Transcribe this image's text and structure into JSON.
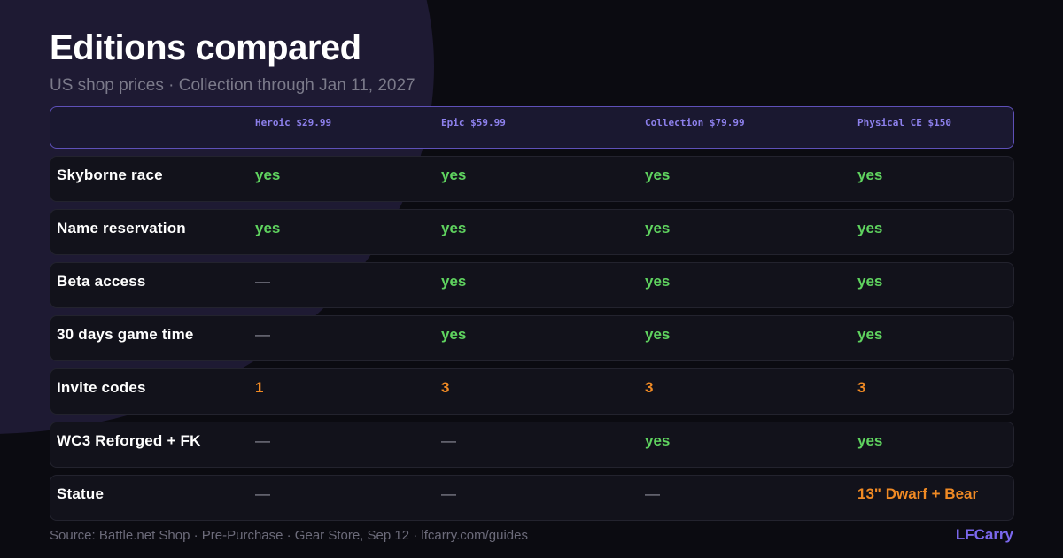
{
  "title": "Editions compared",
  "subtitle": "US shop prices · Collection through Jan 11, 2027",
  "columns": [
    "Heroic $29.99",
    "Epic $59.99",
    "Collection $79.99",
    "Physical CE $150"
  ],
  "rows": [
    {
      "label": "Skyborne race",
      "values": [
        "yes",
        "yes",
        "yes",
        "yes"
      ]
    },
    {
      "label": "Name reservation",
      "values": [
        "yes",
        "yes",
        "yes",
        "yes"
      ]
    },
    {
      "label": "Beta access",
      "values": [
        "—",
        "yes",
        "yes",
        "yes"
      ]
    },
    {
      "label": "30 days game time",
      "values": [
        "—",
        "yes",
        "yes",
        "yes"
      ]
    },
    {
      "label": "Invite codes",
      "values": [
        "1",
        "3",
        "3",
        "3"
      ]
    },
    {
      "label": "WC3 Reforged + FK",
      "values": [
        "—",
        "—",
        "yes",
        "yes"
      ]
    },
    {
      "label": "Statue",
      "values": [
        "—",
        "—",
        "—",
        "13\" Dwarf + Bear"
      ]
    }
  ],
  "footer": {
    "source": "Source: Battle.net Shop · Pre-Purchase · Gear Store, Sep 12 · lfcarry.com/guides",
    "brand": "LFCarry"
  },
  "colors": {
    "yes": "#5fd35f",
    "number": "#f08a24",
    "dash": "#8e8e9a",
    "accent": "#7b68ee",
    "header_border": "#5e50b8"
  }
}
